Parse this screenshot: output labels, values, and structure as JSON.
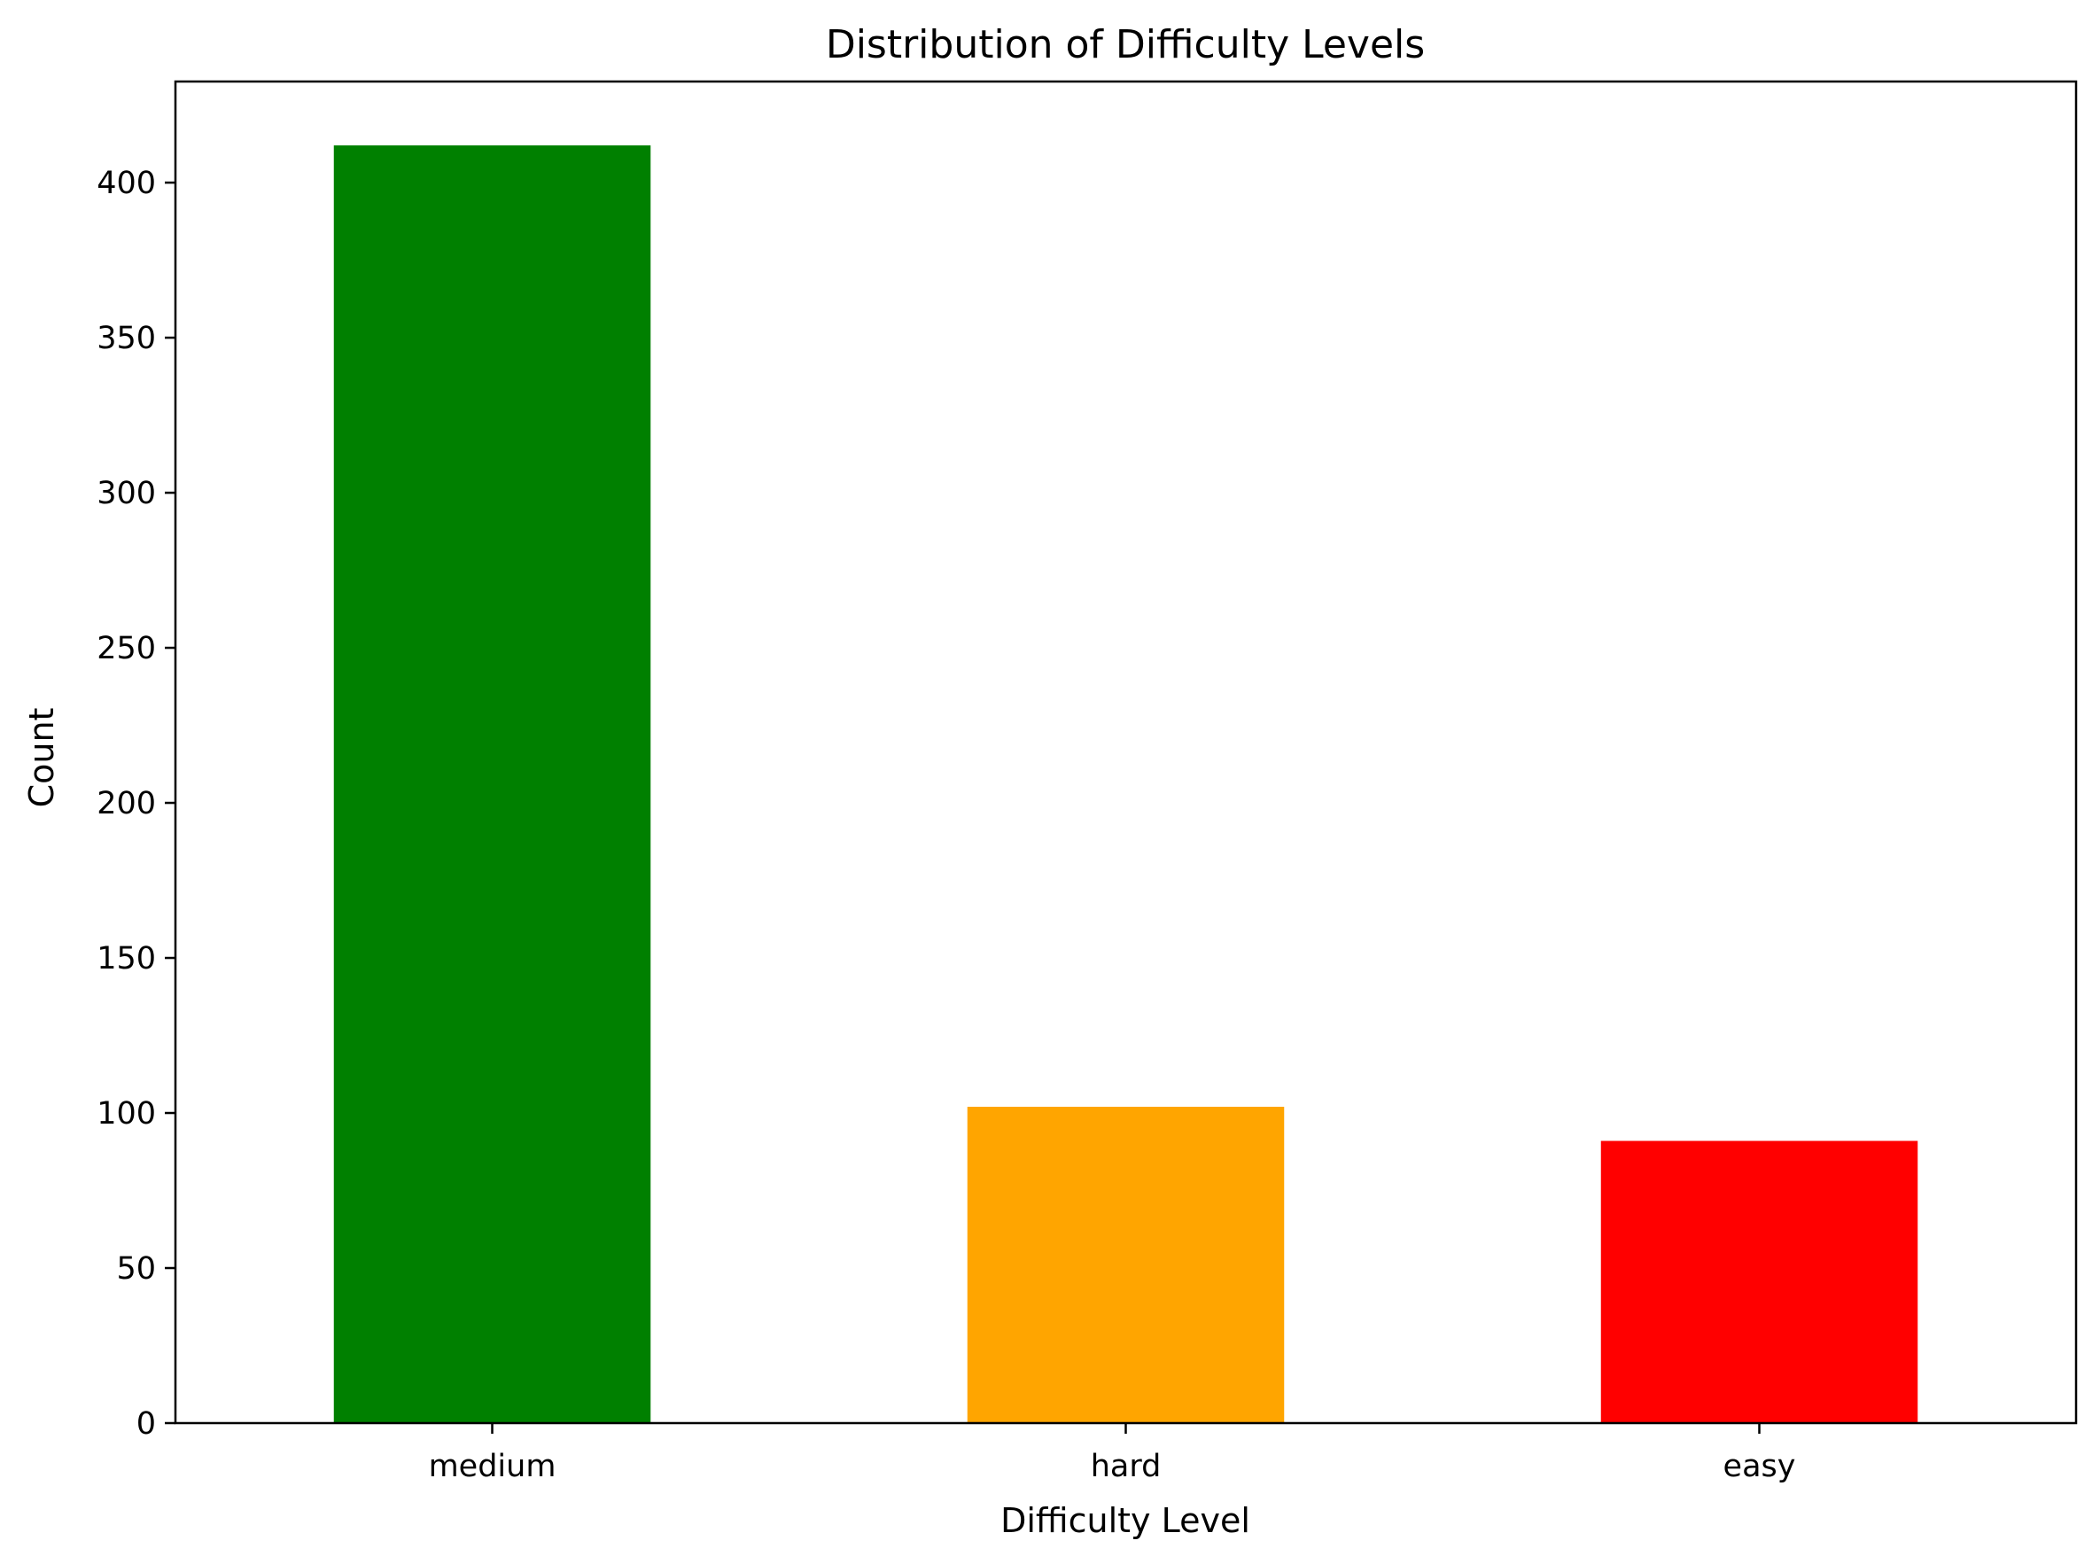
{
  "chart_data": {
    "type": "bar",
    "title": "Distribution of Difficulty Levels",
    "xlabel": "Difficulty Level",
    "ylabel": "Count",
    "categories": [
      "medium",
      "hard",
      "easy"
    ],
    "values": [
      412,
      102,
      91
    ],
    "colors": [
      "#008000",
      "#FFA500",
      "#FF0000"
    ],
    "ylim": [
      0,
      432.6
    ],
    "yticks": [
      0,
      50,
      100,
      150,
      200,
      250,
      300,
      350,
      400
    ],
    "grid": false,
    "legend": "none"
  }
}
